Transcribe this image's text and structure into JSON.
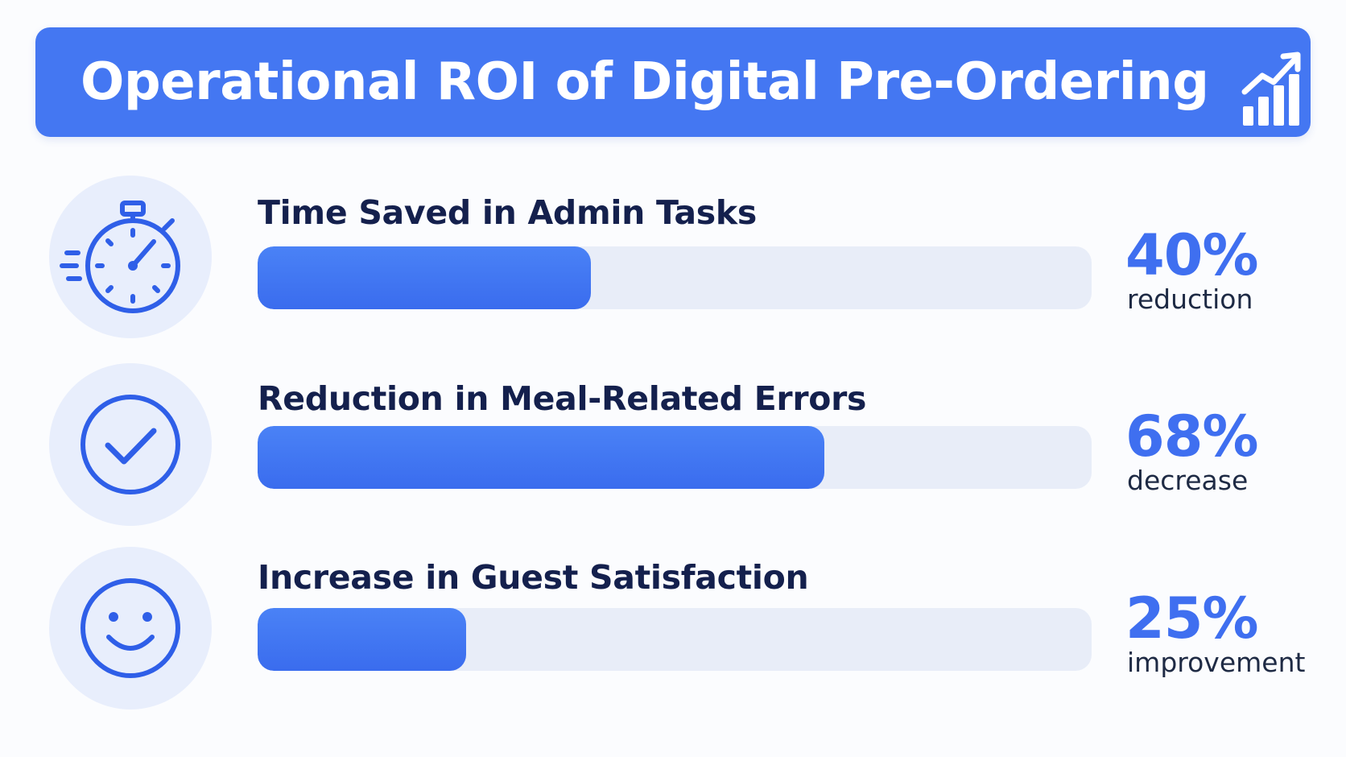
{
  "header": {
    "title": "Operational ROI of Digital Pre-Ordering",
    "icon": "bar-chart-up-icon"
  },
  "chart_data": {
    "type": "bar",
    "orientation": "horizontal",
    "title": "Operational ROI of Digital Pre-Ordering",
    "categories": [
      "Time Saved in Admin Tasks",
      "Reduction in Meal-Related Errors",
      "Increase in Guest Satisfaction"
    ],
    "values": [
      40,
      68,
      25
    ],
    "value_labels": [
      "40%",
      "68%",
      "25%"
    ],
    "descriptors": [
      "reduction",
      "decrease",
      "improvement"
    ],
    "icons": [
      "stopwatch-icon",
      "check-circle-icon",
      "smiley-icon"
    ],
    "xlim": [
      0,
      100
    ],
    "grid": false,
    "legend": "none"
  },
  "colors": {
    "accent": "#4477f2",
    "bar_fill": "#3f72f0",
    "track": "#e8edf8",
    "label_text": "#14204d",
    "icon_bg": "#e8eefc"
  }
}
